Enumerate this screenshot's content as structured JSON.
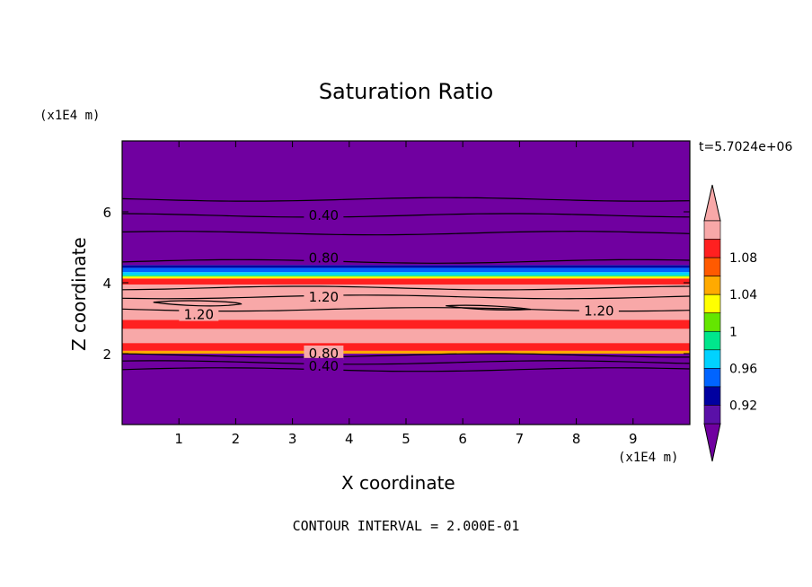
{
  "chart_data": {
    "type": "heatmap",
    "title": "Saturation Ratio",
    "xlabel": "X coordinate",
    "ylabel": "Z coordinate",
    "x_unit": "(x1E4 m)",
    "y_unit": "(x1E4 m)",
    "time_label": "t=5.7024e+06",
    "footer": "CONTOUR INTERVAL = 2.000E-01",
    "xlim": [
      0,
      10
    ],
    "ylim": [
      0,
      8
    ],
    "xticks": [
      "1",
      "2",
      "3",
      "4",
      "5",
      "6",
      "7",
      "8",
      "9"
    ],
    "yticks": [
      "2",
      "4",
      "6"
    ],
    "colorbar": {
      "levels": [
        0.92,
        0.94,
        0.96,
        0.98,
        1.0,
        1.02,
        1.04,
        1.06,
        1.08,
        1.1
      ],
      "tick_labels": [
        "0.92",
        "0.96",
        "1",
        "1.04",
        "1.08"
      ],
      "tick_values": [
        0.92,
        0.96,
        1.0,
        1.04,
        1.08
      ],
      "colors": [
        "#5a10a8",
        "#0000a0",
        "#0064ff",
        "#00d2ff",
        "#00e68c",
        "#64e600",
        "#ffff00",
        "#ffaa00",
        "#ff5a00",
        "#ff2020",
        "#f8a8a8"
      ],
      "under_color": "#7000a0",
      "over_color": "#f8a8a8"
    },
    "bands": [
      {
        "z0": 0.0,
        "z1": 2.0,
        "color": "#7000a0"
      },
      {
        "z0": 2.0,
        "z1": 2.08,
        "color": "#ffaa00"
      },
      {
        "z0": 2.08,
        "z1": 2.3,
        "color": "#ff2020"
      },
      {
        "z0": 2.3,
        "z1": 2.7,
        "color": "#f8a8a8"
      },
      {
        "z0": 2.7,
        "z1": 2.95,
        "color": "#ff2020"
      },
      {
        "z0": 2.95,
        "z1": 3.95,
        "color": "#f8a8a8"
      },
      {
        "z0": 3.95,
        "z1": 4.12,
        "color": "#ff2020"
      },
      {
        "z0": 4.12,
        "z1": 4.18,
        "color": "#ffff00"
      },
      {
        "z0": 4.18,
        "z1": 4.22,
        "color": "#00e68c"
      },
      {
        "z0": 4.22,
        "z1": 4.3,
        "color": "#00d2ff"
      },
      {
        "z0": 4.3,
        "z1": 4.42,
        "color": "#0064ff"
      },
      {
        "z0": 4.42,
        "z1": 4.5,
        "color": "#0000a0"
      },
      {
        "z0": 4.5,
        "z1": 8.0,
        "color": "#7000a0"
      }
    ],
    "contours": [
      {
        "z": 1.55,
        "label": ""
      },
      {
        "z": 1.75,
        "label": ""
      },
      {
        "z": 1.95,
        "label": ""
      },
      {
        "z": 3.25,
        "label": ""
      },
      {
        "z": 3.6,
        "label": ""
      },
      {
        "z": 3.85,
        "label": ""
      },
      {
        "z": 4.6,
        "label": ""
      },
      {
        "z": 5.4,
        "label": ""
      },
      {
        "z": 5.9,
        "label": ""
      },
      {
        "z": 6.35,
        "label": ""
      }
    ],
    "contour_labels": [
      {
        "text": "0.40",
        "x": 3.55,
        "z": 5.9
      },
      {
        "text": "0.80",
        "x": 3.55,
        "z": 4.7
      },
      {
        "text": "1.20",
        "x": 3.55,
        "z": 3.6
      },
      {
        "text": "1.20",
        "x": 1.35,
        "z": 3.1
      },
      {
        "text": "1.20",
        "x": 8.4,
        "z": 3.2
      },
      {
        "text": "0.80",
        "x": 3.55,
        "z": 2.0
      },
      {
        "text": "0.40",
        "x": 3.55,
        "z": 1.65
      }
    ]
  }
}
